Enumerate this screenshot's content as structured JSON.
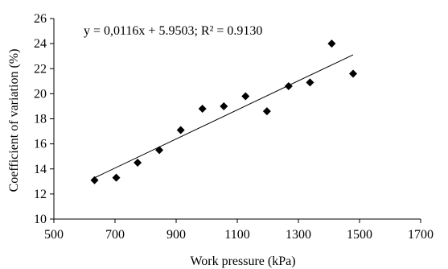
{
  "chart_data": {
    "type": "scatter",
    "xlabel": "Work pressure (kPa)",
    "ylabel": "Coefficient of variation (%)",
    "xlim": [
      500,
      1700
    ],
    "ylim": [
      10,
      26
    ],
    "xticks": [
      500,
      700,
      900,
      1100,
      1300,
      1500,
      1700
    ],
    "yticks": [
      10,
      12,
      14,
      16,
      18,
      20,
      22,
      24,
      26
    ],
    "grid": false,
    "marker": "diamond",
    "marker_color": "#000000",
    "points": [
      {
        "x": 633,
        "y": 13.1
      },
      {
        "x": 704,
        "y": 13.3
      },
      {
        "x": 774,
        "y": 14.5
      },
      {
        "x": 845,
        "y": 15.5
      },
      {
        "x": 915,
        "y": 17.1
      },
      {
        "x": 986,
        "y": 18.8
      },
      {
        "x": 1056,
        "y": 19.0
      },
      {
        "x": 1127,
        "y": 19.8
      },
      {
        "x": 1197,
        "y": 18.6
      },
      {
        "x": 1268,
        "y": 20.6
      },
      {
        "x": 1338,
        "y": 20.9
      },
      {
        "x": 1409,
        "y": 24.0
      },
      {
        "x": 1479,
        "y": 21.6
      }
    ],
    "trendline": {
      "type": "linear",
      "slope": 0.0116,
      "intercept": 5.9503,
      "x_range": [
        633,
        1479
      ],
      "color": "#000000",
      "equation_label": "y = 0,0116x + 5.9503; R² = 0.9130"
    }
  }
}
